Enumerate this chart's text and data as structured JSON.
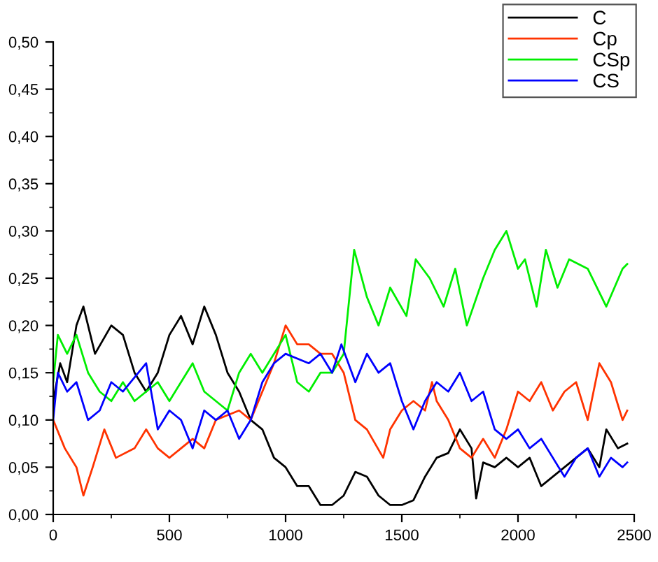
{
  "chart_data": {
    "type": "line",
    "xlim": [
      0,
      2500
    ],
    "ylim": [
      0,
      0.5
    ],
    "xticks": [
      0,
      500,
      1000,
      1500,
      2000,
      2500
    ],
    "yticks": [
      {
        "value": 0,
        "label": "0,00"
      },
      {
        "value": 0.05,
        "label": "0,05"
      },
      {
        "value": 0.1,
        "label": "0,10"
      },
      {
        "value": 0.15,
        "label": "0,15"
      },
      {
        "value": 0.2,
        "label": "0,20"
      },
      {
        "value": 0.25,
        "label": "0,25"
      },
      {
        "value": 0.3,
        "label": "0,30"
      },
      {
        "value": 0.35,
        "label": "0,35"
      },
      {
        "value": 0.4,
        "label": "0,40"
      },
      {
        "value": 0.45,
        "label": "0,45"
      },
      {
        "value": 0.5,
        "label": "0,50"
      }
    ],
    "legend": "top right",
    "grid": false,
    "marker": "none",
    "line_style": "solid",
    "series": [
      {
        "name": "C",
        "color": "#000000",
        "x": [
          0,
          30,
          60,
          100,
          130,
          180,
          250,
          300,
          350,
          400,
          450,
          500,
          550,
          600,
          650,
          700,
          750,
          800,
          850,
          900,
          950,
          1000,
          1050,
          1100,
          1150,
          1200,
          1250,
          1300,
          1350,
          1400,
          1450,
          1500,
          1550,
          1600,
          1650,
          1700,
          1750,
          1800,
          1820,
          1850,
          1900,
          1950,
          2000,
          2050,
          2100,
          2200,
          2300,
          2350,
          2380,
          2430,
          2470
        ],
        "values": [
          0.12,
          0.16,
          0.14,
          0.2,
          0.22,
          0.17,
          0.2,
          0.19,
          0.15,
          0.13,
          0.15,
          0.19,
          0.21,
          0.18,
          0.22,
          0.19,
          0.15,
          0.13,
          0.1,
          0.09,
          0.06,
          0.05,
          0.03,
          0.03,
          0.01,
          0.01,
          0.02,
          0.045,
          0.04,
          0.02,
          0.01,
          0.01,
          0.015,
          0.04,
          0.06,
          0.065,
          0.09,
          0.07,
          0.017,
          0.055,
          0.05,
          0.06,
          0.05,
          0.06,
          0.03,
          0.05,
          0.07,
          0.05,
          0.09,
          0.07,
          0.075
        ]
      },
      {
        "name": "Cp",
        "color": "#ff3300",
        "x": [
          0,
          50,
          100,
          130,
          170,
          220,
          270,
          350,
          400,
          450,
          500,
          600,
          650,
          700,
          800,
          850,
          900,
          950,
          1000,
          1050,
          1100,
          1150,
          1200,
          1250,
          1300,
          1350,
          1420,
          1450,
          1500,
          1550,
          1600,
          1630,
          1650,
          1700,
          1750,
          1800,
          1850,
          1900,
          1950,
          2000,
          2050,
          2100,
          2150,
          2200,
          2250,
          2300,
          2350,
          2400,
          2450,
          2470
        ],
        "values": [
          0.1,
          0.07,
          0.05,
          0.02,
          0.05,
          0.09,
          0.06,
          0.07,
          0.09,
          0.07,
          0.06,
          0.08,
          0.07,
          0.1,
          0.11,
          0.1,
          0.13,
          0.16,
          0.2,
          0.18,
          0.18,
          0.17,
          0.17,
          0.15,
          0.1,
          0.09,
          0.06,
          0.09,
          0.11,
          0.12,
          0.11,
          0.14,
          0.12,
          0.1,
          0.07,
          0.06,
          0.08,
          0.06,
          0.09,
          0.13,
          0.12,
          0.14,
          0.11,
          0.13,
          0.14,
          0.1,
          0.16,
          0.14,
          0.1,
          0.11
        ]
      },
      {
        "name": "CSp",
        "color": "#00ee00",
        "x": [
          0,
          20,
          60,
          100,
          150,
          200,
          250,
          300,
          350,
          400,
          450,
          500,
          550,
          600,
          650,
          700,
          750,
          800,
          850,
          900,
          950,
          1000,
          1050,
          1100,
          1150,
          1200,
          1250,
          1295,
          1350,
          1400,
          1450,
          1520,
          1560,
          1620,
          1680,
          1730,
          1780,
          1850,
          1900,
          1950,
          2000,
          2030,
          2080,
          2120,
          2170,
          2220,
          2300,
          2380,
          2450,
          2470
        ],
        "values": [
          0.14,
          0.19,
          0.17,
          0.19,
          0.15,
          0.13,
          0.12,
          0.14,
          0.12,
          0.13,
          0.14,
          0.12,
          0.14,
          0.16,
          0.13,
          0.12,
          0.11,
          0.15,
          0.17,
          0.15,
          0.17,
          0.19,
          0.14,
          0.13,
          0.15,
          0.15,
          0.17,
          0.28,
          0.23,
          0.2,
          0.24,
          0.21,
          0.27,
          0.25,
          0.22,
          0.26,
          0.2,
          0.25,
          0.28,
          0.3,
          0.26,
          0.27,
          0.22,
          0.28,
          0.24,
          0.27,
          0.26,
          0.22,
          0.26,
          0.265
        ]
      },
      {
        "name": "CS",
        "color": "#0000ff",
        "x": [
          0,
          20,
          60,
          100,
          150,
          200,
          250,
          300,
          400,
          450,
          500,
          550,
          600,
          650,
          700,
          750,
          800,
          850,
          900,
          950,
          1000,
          1100,
          1150,
          1200,
          1240,
          1300,
          1350,
          1400,
          1450,
          1500,
          1550,
          1600,
          1650,
          1700,
          1750,
          1800,
          1850,
          1900,
          1950,
          2000,
          2050,
          2100,
          2150,
          2200,
          2250,
          2300,
          2350,
          2400,
          2450,
          2470
        ],
        "values": [
          0.1,
          0.15,
          0.13,
          0.14,
          0.1,
          0.11,
          0.14,
          0.13,
          0.16,
          0.09,
          0.11,
          0.1,
          0.07,
          0.11,
          0.1,
          0.11,
          0.08,
          0.1,
          0.14,
          0.16,
          0.17,
          0.16,
          0.17,
          0.15,
          0.18,
          0.14,
          0.17,
          0.15,
          0.16,
          0.12,
          0.09,
          0.12,
          0.14,
          0.13,
          0.15,
          0.12,
          0.13,
          0.09,
          0.08,
          0.09,
          0.07,
          0.08,
          0.06,
          0.04,
          0.06,
          0.07,
          0.04,
          0.06,
          0.05,
          0.055
        ]
      }
    ]
  }
}
